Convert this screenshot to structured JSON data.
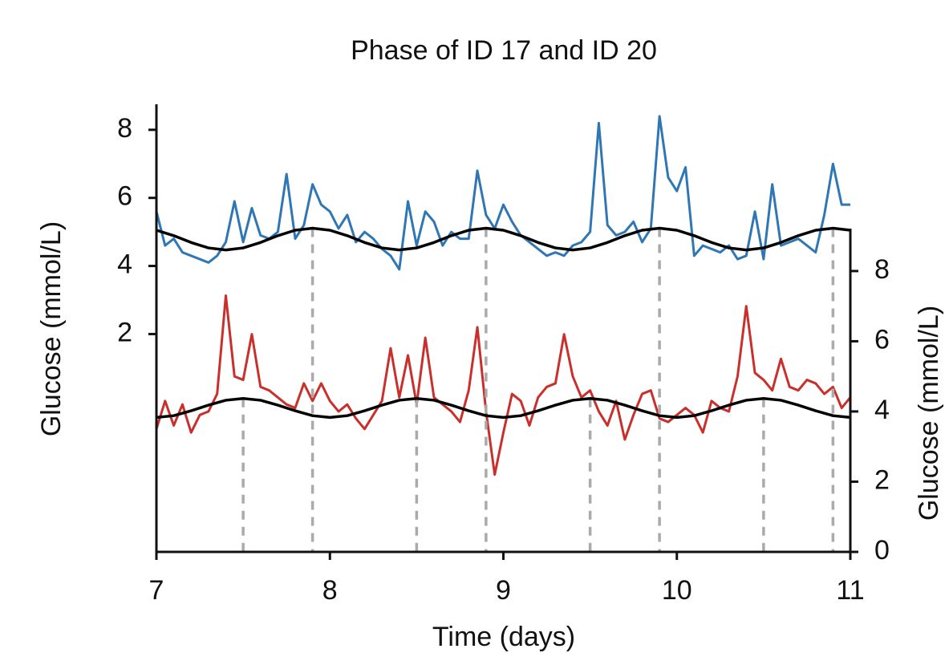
{
  "chart_data": {
    "type": "line",
    "title": "Phase of ID 17 and ID 20",
    "xlabel": "Time (days)",
    "ylabel": "Glucose (mmol/L)",
    "y2label": "Glucose (mmol/L)",
    "xlim": [
      7,
      11
    ],
    "xticks": [
      7,
      8,
      9,
      10,
      11
    ],
    "ylim": [
      -4.4,
      8.75
    ],
    "yticks": [
      2,
      4,
      6,
      8
    ],
    "y2lim": [
      0,
      12.75
    ],
    "y2ticks": [
      0,
      2,
      4,
      6,
      8
    ],
    "x": [
      7.0,
      7.05,
      7.1,
      7.15,
      7.2,
      7.25,
      7.3,
      7.35,
      7.4,
      7.45,
      7.5,
      7.55,
      7.6,
      7.65,
      7.7,
      7.75,
      7.8,
      7.85,
      7.9,
      7.95,
      8.0,
      8.05,
      8.1,
      8.15,
      8.2,
      8.25,
      8.3,
      8.35,
      8.4,
      8.45,
      8.5,
      8.55,
      8.6,
      8.65,
      8.7,
      8.75,
      8.8,
      8.85,
      8.9,
      8.95,
      9.0,
      9.05,
      9.1,
      9.15,
      9.2,
      9.25,
      9.3,
      9.35,
      9.4,
      9.45,
      9.5,
      9.55,
      9.6,
      9.65,
      9.7,
      9.75,
      9.8,
      9.85,
      9.9,
      9.95,
      10.0,
      10.05,
      10.1,
      10.15,
      10.2,
      10.25,
      10.3,
      10.35,
      10.4,
      10.45,
      10.5,
      10.55,
      10.6,
      10.65,
      10.7,
      10.75,
      10.8,
      10.85,
      10.9,
      10.95,
      11.0
    ],
    "series": [
      {
        "color": "#2f77b4",
        "axis": "y",
        "values": [
          5.6,
          4.6,
          4.8,
          4.4,
          4.3,
          4.2,
          4.1,
          4.3,
          4.7,
          5.9,
          4.7,
          5.7,
          4.9,
          4.8,
          5.0,
          6.7,
          4.8,
          5.2,
          6.4,
          5.8,
          5.6,
          5.1,
          5.5,
          4.7,
          5.0,
          4.8,
          4.5,
          4.3,
          3.9,
          5.9,
          4.6,
          5.6,
          5.3,
          4.6,
          5.0,
          4.8,
          4.8,
          6.8,
          5.5,
          5.1,
          5.8,
          5.3,
          4.9,
          4.7,
          4.5,
          4.3,
          4.4,
          4.3,
          4.6,
          4.7,
          5.0,
          8.2,
          5.2,
          4.9,
          5.0,
          5.3,
          4.7,
          5.1,
          8.4,
          6.6,
          6.2,
          6.9,
          4.3,
          4.6,
          4.5,
          4.4,
          4.6,
          4.2,
          4.3,
          5.6,
          4.2,
          6.4,
          4.6,
          4.7,
          4.8,
          4.6,
          4.4,
          5.5,
          7.0,
          5.8,
          5.8
        ]
      },
      {
        "color": "#c9302c",
        "axis": "y2",
        "values": [
          3.5,
          4.3,
          3.6,
          4.2,
          3.4,
          3.9,
          4.0,
          4.5,
          7.3,
          5.0,
          4.9,
          6.2,
          4.7,
          4.6,
          4.4,
          4.2,
          4.1,
          4.8,
          4.3,
          4.8,
          4.3,
          4.0,
          4.2,
          3.8,
          3.5,
          3.9,
          4.3,
          5.8,
          4.4,
          5.6,
          4.2,
          6.1,
          4.4,
          4.2,
          4.0,
          3.7,
          4.6,
          6.4,
          4.0,
          2.2,
          3.4,
          4.5,
          4.3,
          3.6,
          4.4,
          4.7,
          4.8,
          6.2,
          5.0,
          4.4,
          4.6,
          4.0,
          3.6,
          4.3,
          3.2,
          3.9,
          4.5,
          4.6,
          3.8,
          3.7,
          3.9,
          4.1,
          3.9,
          3.4,
          4.3,
          4.1,
          4.0,
          5.0,
          7.0,
          5.1,
          4.9,
          4.6,
          5.5,
          4.7,
          4.6,
          4.9,
          4.8,
          4.5,
          4.7,
          4.1,
          4.4
        ]
      },
      {
        "color": "#000000",
        "axis": "y",
        "x": [
          7.0,
          7.1,
          7.2,
          7.3,
          7.4,
          7.5,
          7.6,
          7.7,
          7.8,
          7.9,
          8.0,
          8.1,
          8.2,
          8.3,
          8.4,
          8.5,
          8.6,
          8.7,
          8.8,
          8.9,
          9.0,
          9.1,
          9.2,
          9.3,
          9.4,
          9.5,
          9.6,
          9.7,
          9.8,
          9.9,
          10.0,
          10.1,
          10.2,
          10.3,
          10.4,
          10.5,
          10.6,
          10.7,
          10.8,
          10.9,
          11.0
        ],
        "values": [
          5.05,
          4.89,
          4.69,
          4.53,
          4.47,
          4.53,
          4.69,
          4.89,
          5.05,
          5.11,
          5.05,
          4.89,
          4.69,
          4.53,
          4.47,
          4.53,
          4.69,
          4.89,
          5.05,
          5.11,
          5.05,
          4.89,
          4.69,
          4.53,
          4.47,
          4.53,
          4.69,
          4.89,
          5.05,
          5.11,
          5.05,
          4.89,
          4.69,
          4.53,
          4.47,
          4.53,
          4.69,
          4.89,
          5.05,
          5.11,
          5.05
        ],
        "peaks": [
          7.9,
          8.9,
          9.9,
          10.9
        ]
      },
      {
        "color": "#000000",
        "axis": "y2",
        "x": [
          7.0,
          7.1,
          7.2,
          7.3,
          7.4,
          7.5,
          7.6,
          7.7,
          7.8,
          7.9,
          8.0,
          8.1,
          8.2,
          8.3,
          8.4,
          8.5,
          8.6,
          8.7,
          8.8,
          8.9,
          9.0,
          9.1,
          9.2,
          9.3,
          9.4,
          9.5,
          9.6,
          9.7,
          9.8,
          9.9,
          10.0,
          10.1,
          10.2,
          10.3,
          10.4,
          10.5,
          10.6,
          10.7,
          10.8,
          10.9,
          11.0
        ],
        "values": [
          3.83,
          3.88,
          4.02,
          4.18,
          4.32,
          4.37,
          4.32,
          4.18,
          4.02,
          3.88,
          3.83,
          3.88,
          4.02,
          4.18,
          4.32,
          4.37,
          4.32,
          4.18,
          4.02,
          3.88,
          3.83,
          3.88,
          4.02,
          4.18,
          4.32,
          4.37,
          4.32,
          4.18,
          4.02,
          3.88,
          3.83,
          3.88,
          4.02,
          4.18,
          4.32,
          4.37,
          4.32,
          4.18,
          4.02,
          3.88,
          3.83
        ],
        "peaks": [
          7.5,
          8.5,
          9.5,
          10.5
        ]
      }
    ]
  }
}
